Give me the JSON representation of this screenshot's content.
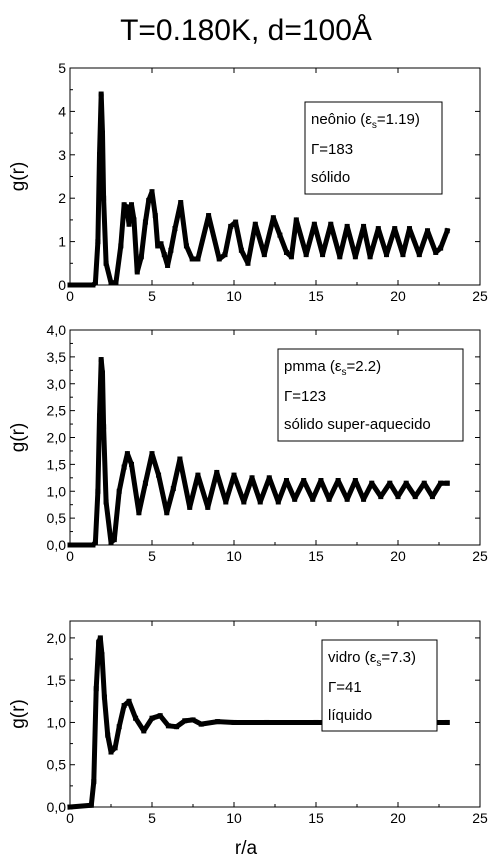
{
  "figure": {
    "title": "T=0.180K, d=100Å",
    "xlabel": "r/a"
  },
  "chart_data": [
    {
      "type": "line",
      "ylabel": "g(r)",
      "xlim": [
        0,
        25
      ],
      "ylim": [
        0,
        5
      ],
      "xticks": [
        "0",
        "5",
        "10",
        "15",
        "20",
        "25"
      ],
      "yticks": [
        "0",
        "1",
        "2",
        "3",
        "4",
        "5"
      ],
      "legend": {
        "material": "neônio",
        "eps_sym": "ε",
        "eps_sub": "s",
        "eps_value": "=1.19)",
        "gamma": "Γ=183",
        "phase": "sólido"
      },
      "series": [
        {
          "x": [
            0,
            1.4,
            1.55,
            1.7,
            1.8,
            1.9,
            1.98,
            2.05,
            2.2,
            2.5,
            2.8,
            3.1,
            3.3,
            3.45,
            3.6,
            3.75,
            3.9,
            4.1,
            4.35,
            4.6,
            4.8,
            5.0,
            5.2,
            5.35,
            5.55,
            5.75,
            5.95,
            6.15,
            6.4,
            6.75,
            7.1,
            7.45,
            7.8,
            8.45,
            9.1,
            9.45,
            9.8,
            10.1,
            10.45,
            10.85,
            11.3,
            11.85,
            12.4,
            12.8,
            13.2,
            13.5,
            13.8,
            14.4,
            14.9,
            15.4,
            15.9,
            16.45,
            16.9,
            17.4,
            17.9,
            18.3,
            18.8,
            19.3,
            19.8,
            20.3,
            20.7,
            21.3,
            21.8,
            22.3,
            22.6,
            23.0
          ],
          "y": [
            0,
            0,
            0.05,
            1.0,
            3.0,
            4.4,
            3.5,
            2.0,
            0.5,
            0.05,
            0.05,
            0.9,
            1.85,
            1.8,
            1.4,
            1.85,
            1.5,
            0.3,
            0.65,
            1.45,
            1.95,
            2.15,
            1.6,
            0.9,
            0.95,
            0.7,
            0.45,
            0.8,
            1.3,
            1.9,
            0.9,
            0.6,
            0.6,
            1.6,
            0.6,
            0.7,
            1.35,
            1.45,
            0.8,
            0.5,
            1.4,
            0.7,
            1.55,
            1.15,
            0.75,
            0.65,
            1.5,
            0.7,
            1.4,
            0.7,
            1.4,
            0.65,
            1.35,
            0.65,
            1.35,
            0.65,
            1.3,
            0.7,
            1.3,
            0.7,
            1.3,
            0.7,
            1.25,
            0.75,
            0.85,
            1.25
          ]
        }
      ]
    },
    {
      "type": "line",
      "ylabel": "g(r)",
      "xlim": [
        0,
        25
      ],
      "ylim": [
        0,
        4
      ],
      "xticks": [
        "0",
        "5",
        "10",
        "15",
        "20",
        "25"
      ],
      "yticks": [
        "0,0",
        "0,5",
        "1,0",
        "1,5",
        "2,0",
        "2,5",
        "3,0",
        "3,5",
        "4,0"
      ],
      "legend": {
        "material": "pmma",
        "eps_sym": "ε",
        "eps_sub": "s",
        "eps_value": "=2.2)",
        "gamma": "Γ=123",
        "phase": "sólido super-aquecido"
      },
      "series": [
        {
          "x": [
            0,
            1.4,
            1.55,
            1.7,
            1.8,
            1.9,
            1.98,
            2.05,
            2.2,
            2.5,
            2.7,
            3.0,
            3.3,
            3.5,
            3.75,
            4.2,
            4.6,
            5.0,
            5.4,
            5.9,
            6.3,
            6.7,
            7.3,
            7.8,
            8.4,
            8.95,
            9.5,
            10.0,
            10.6,
            11.1,
            11.6,
            12.15,
            12.7,
            13.2,
            13.7,
            14.25,
            14.8,
            15.3,
            15.8,
            16.35,
            16.9,
            17.4,
            17.9,
            18.4,
            18.95,
            19.5,
            20.0,
            20.5,
            21.05,
            21.6,
            22.1,
            22.6,
            23.0
          ],
          "y": [
            0,
            0,
            0.05,
            1.0,
            2.4,
            3.45,
            3.2,
            2.2,
            0.8,
            0.05,
            0.1,
            1.0,
            1.45,
            1.7,
            1.5,
            0.6,
            1.15,
            1.7,
            1.3,
            0.6,
            1.05,
            1.6,
            0.7,
            1.3,
            0.7,
            1.35,
            0.8,
            1.3,
            0.8,
            1.25,
            0.8,
            1.25,
            0.8,
            1.2,
            0.85,
            1.2,
            0.85,
            1.2,
            0.85,
            1.2,
            0.85,
            1.2,
            0.85,
            1.15,
            0.9,
            1.15,
            0.9,
            1.15,
            0.9,
            1.15,
            0.9,
            1.15,
            1.15
          ]
        }
      ]
    },
    {
      "type": "line",
      "ylabel": "g(r)",
      "xlim": [
        0,
        25
      ],
      "ylim": [
        0,
        2.2
      ],
      "xticks": [
        "0",
        "5",
        "10",
        "15",
        "20",
        "25"
      ],
      "yticks": [
        "0,0",
        "0,5",
        "1,0",
        "1,5",
        "2,0"
      ],
      "legend": {
        "material": "vidro",
        "eps_sym": "ε",
        "eps_sub": "s",
        "eps_value": "=7.3)",
        "gamma": "Γ=41",
        "phase": "líquido"
      },
      "series": [
        {
          "x": [
            0,
            1.3,
            1.45,
            1.6,
            1.75,
            1.85,
            1.95,
            2.1,
            2.3,
            2.5,
            2.75,
            3.0,
            3.3,
            3.6,
            4.0,
            4.5,
            5.0,
            5.5,
            6.0,
            6.5,
            7.0,
            7.5,
            8.0,
            9.0,
            10.0,
            12.0,
            15.0,
            18.0,
            20.0,
            23.0
          ],
          "y": [
            0,
            0.02,
            0.3,
            1.4,
            1.95,
            2.0,
            1.8,
            1.3,
            0.85,
            0.65,
            0.7,
            0.95,
            1.2,
            1.25,
            1.05,
            0.9,
            1.05,
            1.08,
            0.96,
            0.95,
            1.02,
            1.03,
            0.98,
            1.01,
            1.0,
            1.0,
            1.0,
            1.0,
            1.0,
            1.0
          ]
        }
      ]
    }
  ]
}
